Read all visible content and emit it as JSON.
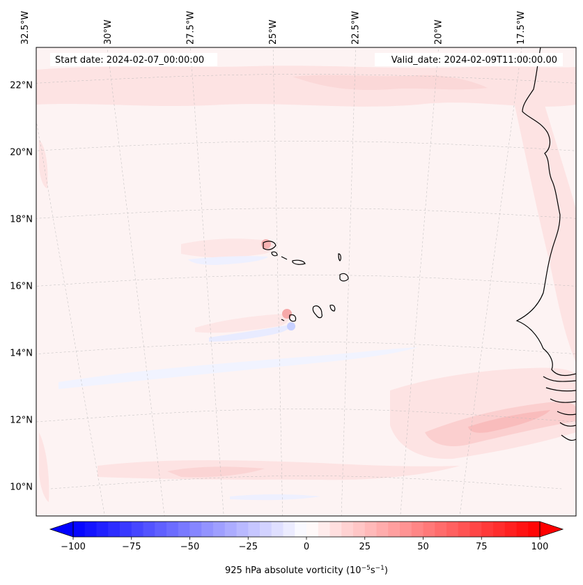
{
  "map": {
    "start_label": "Start date: 2024-02-07_00:00:00",
    "valid_label": "Valid_date: 2024-02-09T11:00:00.00",
    "extent": {
      "lon_min": -33.5,
      "lon_max": -14.5,
      "lat_min": 8.8,
      "lat_max": 22.8
    },
    "lon_ticks": [
      {
        "lon": -32.5,
        "label": "32.5°W"
      },
      {
        "lon": -30,
        "label": "30°W"
      },
      {
        "lon": -27.5,
        "label": "27.5°W"
      },
      {
        "lon": -25,
        "label": "25°W"
      },
      {
        "lon": -22.5,
        "label": "22.5°W"
      },
      {
        "lon": -20,
        "label": "20°W"
      },
      {
        "lon": -17.5,
        "label": "17.5°W"
      }
    ],
    "lat_ticks": [
      {
        "lat": 22,
        "label": "22°N"
      },
      {
        "lat": 20,
        "label": "20°N"
      },
      {
        "lat": 18,
        "label": "18°N"
      },
      {
        "lat": 16,
        "label": "16°N"
      },
      {
        "lat": 14,
        "label": "14°N"
      },
      {
        "lat": 12,
        "label": "12°N"
      },
      {
        "lat": 10,
        "label": "10°N"
      }
    ]
  },
  "colorbar": {
    "label_prefix": "925 hPa absolute vorticity (10",
    "label_exp1": "−5",
    "label_mid": "s",
    "label_exp2": "−1",
    "label_suffix": ")",
    "vmin": -100,
    "vmax": 100,
    "ticks": [
      {
        "value": -100,
        "label": "−100"
      },
      {
        "value": -75,
        "label": "−75"
      },
      {
        "value": -50,
        "label": "−50"
      },
      {
        "value": -25,
        "label": "−25"
      },
      {
        "value": 0,
        "label": "0"
      },
      {
        "value": 25,
        "label": "25"
      },
      {
        "value": 50,
        "label": "50"
      },
      {
        "value": 75,
        "label": "75"
      },
      {
        "value": 100,
        "label": "100"
      }
    ],
    "levels": 40,
    "neg_color": "#0000ff",
    "pos_color": "#ff0000",
    "mid_color": "#ffffff"
  },
  "colors": {
    "field_background": "#fdf3f3",
    "band_light": "#fde3e3",
    "band_medium": "#fbcaca",
    "negative_light": "#eef0ff",
    "coast": "#000000",
    "grid": "#bbbbbb"
  }
}
